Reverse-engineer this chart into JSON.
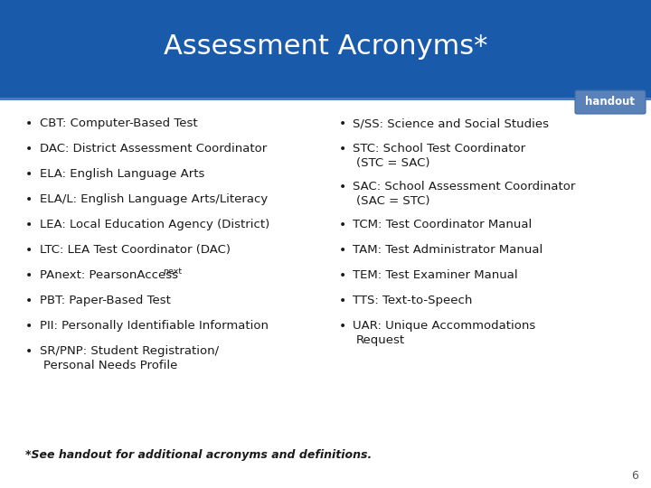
{
  "title": "Assessment Acronyms*",
  "title_color": "#ffffff",
  "header_bg": "#1a5aaa",
  "body_bg": "#ffffff",
  "handout_bg": "#5a82b8",
  "handout_text": "handout",
  "left_bullets": [
    "CBT: Computer-Based Test",
    "DAC: District Assessment Coordinator",
    "ELA: English Language Arts",
    "ELA/L: English Language Arts/Literacy",
    "LEA: Local Education Agency (District)",
    "LTC: LEA Test Coordinator (DAC)",
    "PAnext: PearsonAccess",
    "PBT: Paper-Based Test",
    "PII: Personally Identifiable Information",
    "SR/PNP: Student Registration/"
  ],
  "left_cont": [
    "",
    "",
    "",
    "",
    "",
    "",
    "",
    "",
    "",
    "Personal Needs Profile"
  ],
  "right_bullets": [
    "S/SS: Science and Social Studies",
    "STC: School Test Coordinator",
    "SAC: School Assessment Coordinator",
    "TCM: Test Coordinator Manual",
    "TAM: Test Administrator Manual",
    "TEM: Test Examiner Manual",
    "TTS: Text-to-Speech",
    "UAR: Unique Accommodations"
  ],
  "right_cont": [
    "",
    "(STC = SAC)",
    "(SAC = STC)",
    "",
    "",
    "",
    "",
    "Request"
  ],
  "footer": "*See handout for additional acronyms and definitions.",
  "page_num": "6",
  "bullet_color": "#1a1a1a",
  "footer_color": "#1a1a1a"
}
